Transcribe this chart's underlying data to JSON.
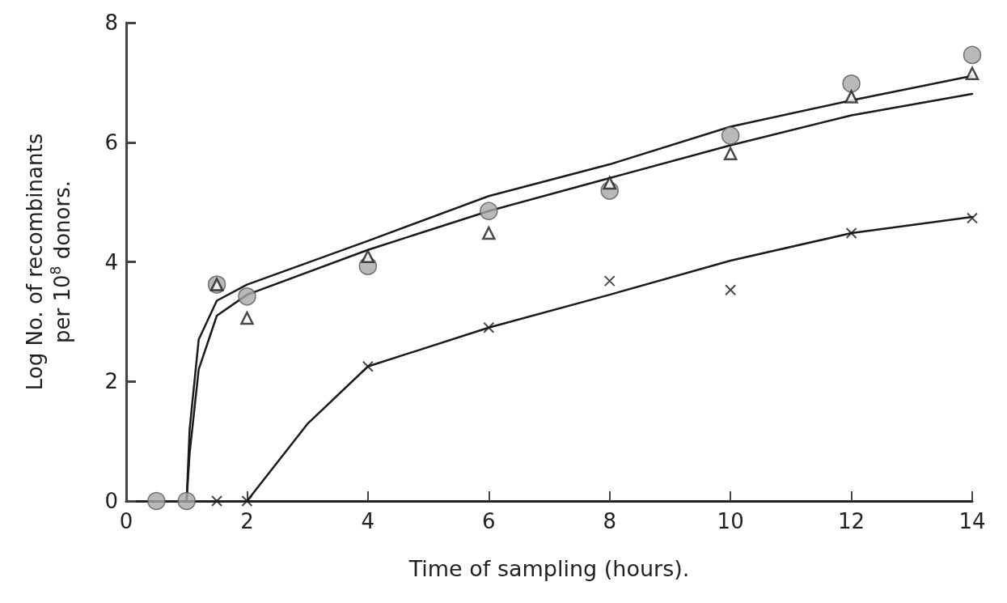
{
  "chart_data": {
    "type": "scatter",
    "xlabel": "Time of sampling (hours).",
    "ylabel": "Log No. of recombinants\nper 10$^{8}$ donors.",
    "xlim": [
      0,
      14
    ],
    "ylim": [
      0,
      8
    ],
    "xticks": [
      0,
      2,
      4,
      6,
      8,
      10,
      12,
      14
    ],
    "yticks": [
      0,
      2,
      4,
      6,
      8
    ],
    "grid": false,
    "series": [
      {
        "marker": "circle",
        "color": "#a8a8a8",
        "x": [
          0.5,
          1,
          1.5,
          2,
          4,
          6,
          8,
          10,
          12,
          14
        ],
        "values": [
          0,
          0,
          3.62,
          3.42,
          3.93,
          4.85,
          5.19,
          6.11,
          6.98,
          7.46
        ]
      },
      {
        "marker": "triangle",
        "color": "#1a1a1a",
        "x": [
          1.5,
          2,
          4,
          6,
          8,
          10,
          12,
          14
        ],
        "values": [
          3.62,
          3.06,
          4.09,
          4.48,
          5.32,
          5.81,
          6.76,
          7.15
        ]
      },
      {
        "marker": "cross",
        "color": "#1a1a1a",
        "x": [
          1.5,
          2,
          4,
          6,
          8,
          10,
          12,
          14
        ],
        "values": [
          0,
          0,
          2.25,
          2.9,
          3.68,
          3.53,
          4.48,
          4.73
        ]
      },
      {
        "type": "line",
        "marker": "none",
        "line_style": "solid",
        "color": "#1a1a1a",
        "x": [
          1,
          1.05,
          1.2,
          1.5,
          2,
          4,
          6,
          8,
          10,
          12,
          14
        ],
        "values": [
          0,
          1.2,
          2.7,
          3.35,
          3.62,
          4.35,
          5.1,
          5.63,
          6.26,
          6.7,
          7.11
        ]
      },
      {
        "type": "line",
        "marker": "none",
        "line_style": "solid",
        "color": "#1a1a1a",
        "x": [
          1,
          1.05,
          1.2,
          1.5,
          2,
          4,
          6,
          8,
          10,
          12,
          14
        ],
        "values": [
          0,
          0.8,
          2.2,
          3.1,
          3.45,
          4.2,
          4.85,
          5.4,
          5.95,
          6.45,
          6.81
        ]
      },
      {
        "type": "line",
        "marker": "none",
        "line_style": "solid",
        "color": "#1a1a1a",
        "x": [
          2,
          3,
          4,
          6,
          8,
          10,
          12,
          14
        ],
        "values": [
          0,
          1.29,
          2.25,
          2.9,
          3.45,
          4.02,
          4.48,
          4.75
        ]
      }
    ]
  }
}
